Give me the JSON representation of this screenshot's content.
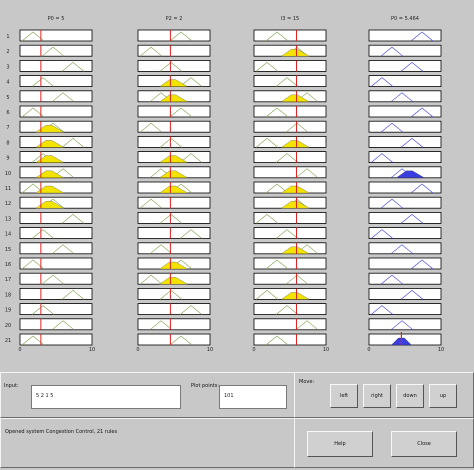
{
  "columns": [
    {
      "header": "P0 = 5",
      "ticks": [
        "0",
        "10"
      ],
      "color": "#f2e400",
      "redline_frac": 0.29
    },
    {
      "header": "P2 = 2",
      "ticks": [
        "0",
        "10"
      ],
      "color": "#f2e400",
      "redline_frac": 0.45
    },
    {
      "header": "I3 = 15",
      "ticks": [
        "0",
        "10"
      ],
      "color": "#f2e400",
      "redline_frac": 0.59
    },
    {
      "header": "P0 = 5.464",
      "ticks": [
        "0",
        "10"
      ],
      "color": "#3a3ee0",
      "redline_frac": 0.45
    }
  ],
  "rows": [
    "1",
    "2",
    "3",
    "4",
    "5",
    "6",
    "7",
    "8",
    "9",
    "10",
    "11",
    "12",
    "13",
    "14",
    "15",
    "16",
    "17",
    "18",
    "19",
    "20",
    "21"
  ],
  "fill_rows": {
    "col0": [
      7,
      8,
      9,
      10,
      11,
      12
    ],
    "col1": [
      4,
      5,
      9,
      10,
      11,
      16,
      17
    ],
    "col2": [
      2,
      5,
      8,
      11,
      12,
      15,
      18
    ],
    "col3": [
      10
    ]
  },
  "aggregate_fill": "#3a3ee0",
  "input": {
    "label": "Input:",
    "value": "5 2 1 5"
  },
  "plot_points": {
    "label": "Plot points:",
    "value": "101"
  },
  "move": {
    "label": "Move:",
    "buttons": [
      "left",
      "right",
      "down",
      "up"
    ]
  },
  "status": {
    "text": "Opened system Congestion Control, 21 rules"
  },
  "actions": {
    "help": "Help",
    "close": "Close"
  },
  "colors": {
    "background": "#c8c8c8",
    "red_line": "#e02020",
    "mf_line": "#7fa050",
    "box_border": "#000000"
  }
}
